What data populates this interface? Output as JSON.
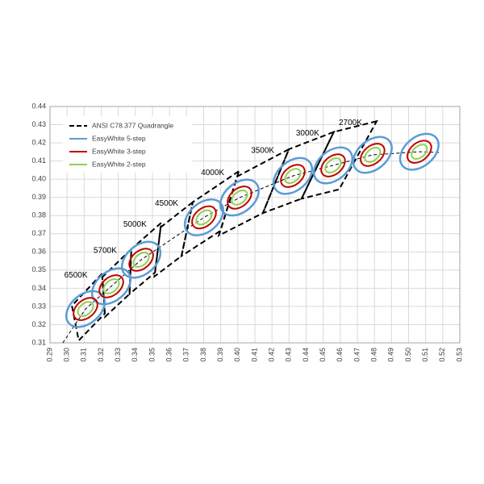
{
  "chart_data": {
    "type": "chromaticity",
    "xlim": [
      0.29,
      0.53
    ],
    "ylim": [
      0.31,
      0.44
    ],
    "xticks": [
      0.29,
      {
        "value": 0.3,
        "label": "0.30"
      },
      0.31,
      0.32,
      0.33,
      0.34,
      0.35,
      0.36,
      0.37,
      0.38,
      0.39,
      {
        "value": 0.4,
        "label": "0.40"
      },
      0.41,
      0.42,
      0.43,
      0.44,
      0.45,
      0.46,
      0.47,
      0.48,
      0.49,
      {
        "value": 0.5,
        "label": "0.50"
      },
      0.51,
      0.52,
      0.53
    ],
    "yticks": [
      0.31,
      0.32,
      0.33,
      0.34,
      0.35,
      0.36,
      0.37,
      0.38,
      0.39,
      {
        "value": 0.4,
        "label": "0.40"
      },
      0.41,
      0.42,
      0.43,
      0.44
    ],
    "grid": true,
    "legend": "upper left",
    "quadrangles": {
      "name": "ANSI C78.377 Quadrangle",
      "color": "#000000",
      "items": [
        {
          "label": "6500K",
          "corners": [
            [
              0.3205,
              0.3481
            ],
            [
              0.3028,
              0.3304
            ],
            [
              0.3068,
              0.3113
            ],
            [
              0.3221,
              0.3261
            ]
          ]
        },
        {
          "label": "5700K",
          "corners": [
            [
              0.3376,
              0.3616
            ],
            [
              0.3207,
              0.3462
            ],
            [
              0.3222,
              0.3243
            ],
            [
              0.3366,
              0.3369
            ]
          ]
        },
        {
          "label": "5000K",
          "corners": [
            [
              0.3551,
              0.376
            ],
            [
              0.3376,
              0.3616
            ],
            [
              0.3366,
              0.3369
            ],
            [
              0.3515,
              0.3487
            ]
          ]
        },
        {
          "label": "4500K",
          "corners": [
            [
              0.3736,
              0.3874
            ],
            [
              0.3548,
              0.3736
            ],
            [
              0.3512,
              0.3465
            ],
            [
              0.367,
              0.3578
            ]
          ]
        },
        {
          "label": "4000K",
          "corners": [
            [
              0.4006,
              0.4044
            ],
            [
              0.3736,
              0.3874
            ],
            [
              0.367,
              0.3578
            ],
            [
              0.3898,
              0.3716
            ]
          ]
        },
        {
          "label": "3500K",
          "corners": [
            [
              0.4299,
              0.4165
            ],
            [
              0.3996,
              0.4015
            ],
            [
              0.3889,
              0.369
            ],
            [
              0.4147,
              0.3814
            ]
          ]
        },
        {
          "label": "3000K",
          "corners": [
            [
              0.4562,
              0.426
            ],
            [
              0.4299,
              0.4165
            ],
            [
              0.4147,
              0.3814
            ],
            [
              0.4373,
              0.3893
            ]
          ]
        },
        {
          "label": "2700K",
          "corners": [
            [
              0.4813,
              0.4319
            ],
            [
              0.4562,
              0.426
            ],
            [
              0.4373,
              0.3893
            ],
            [
              0.4593,
              0.3944
            ]
          ]
        }
      ]
    },
    "center_line": {
      "x": [
        0.2975,
        0.3108,
        0.3259,
        0.3434,
        0.3802,
        0.401,
        0.4322,
        0.4558,
        0.4789,
        0.5063,
        0.518
      ],
      "y": [
        0.31,
        0.3286,
        0.3411,
        0.3557,
        0.379,
        0.3899,
        0.4018,
        0.4076,
        0.4134,
        0.4151,
        0.4147
      ]
    },
    "ellipse_centers": {
      "x": [
        0.3108,
        0.3259,
        0.3434,
        0.3802,
        0.401,
        0.4322,
        0.4558,
        0.4789,
        0.5063
      ],
      "y": [
        0.3286,
        0.3411,
        0.3557,
        0.379,
        0.3899,
        0.4018,
        0.4076,
        0.4134,
        0.4151
      ]
    },
    "tilt": 40,
    "series": [
      {
        "name": "EasyWhite 5-step",
        "color": "#5b9bd5",
        "a": 0.0128,
        "b": 0.008
      },
      {
        "name": "EasyWhite 3-step",
        "color": "#c00000",
        "a": 0.008,
        "b": 0.0049
      },
      {
        "name": "EasyWhite 2-step",
        "color": "#92d050",
        "a": 0.0052,
        "b": 0.0031
      }
    ]
  }
}
